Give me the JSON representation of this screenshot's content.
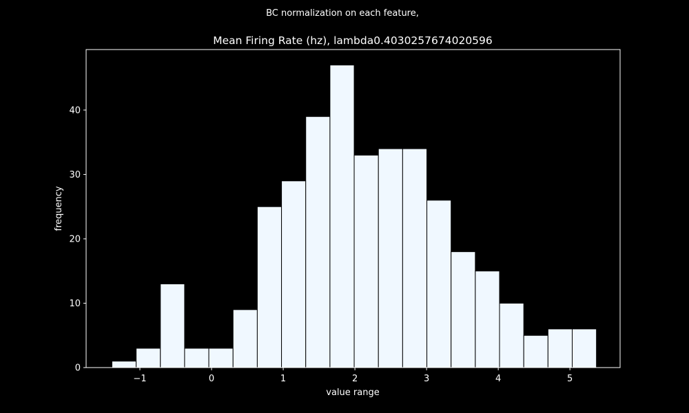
{
  "figure": {
    "suptitle": "BC normalization on each feature,"
  },
  "chart_data": {
    "type": "bar",
    "title": "Mean Firing Rate (hz), lambda0.4030257674020596",
    "xlabel": "value range",
    "ylabel": "frequency",
    "xlim": [
      -1.75,
      5.7
    ],
    "ylim": [
      0,
      49.4
    ],
    "xticks": [
      -1,
      0,
      1,
      2,
      3,
      4,
      5
    ],
    "xtick_labels": [
      "−1",
      "0",
      "1",
      "2",
      "3",
      "4",
      "5"
    ],
    "yticks": [
      0,
      10,
      20,
      30,
      40
    ],
    "ytick_labels": [
      "0",
      "10",
      "20",
      "30",
      "40"
    ],
    "bin_edges": [
      -1.39,
      -1.052,
      -0.714,
      -0.376,
      -0.038,
      0.3,
      0.638,
      0.976,
      1.314,
      1.652,
      1.99,
      2.328,
      2.666,
      3.004,
      3.342,
      3.68,
      4.018,
      4.356,
      4.694,
      5.032,
      5.37
    ],
    "values": [
      1,
      3,
      13,
      3,
      3,
      9,
      25,
      29,
      39,
      47,
      33,
      34,
      34,
      26,
      18,
      15,
      10,
      5,
      6,
      6
    ],
    "grid": false,
    "colors": {
      "bar_fill": "#f0f8ff",
      "bar_edge": "#000000",
      "background": "#000000",
      "axes": "#ffffff",
      "text": "#ffffff"
    }
  }
}
